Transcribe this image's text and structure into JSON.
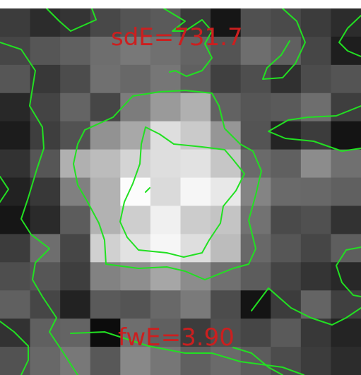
{
  "labels": {
    "sd": "sdE=731.7",
    "fw": "fwE=3.90"
  },
  "colors": {
    "contour": "#22e022",
    "label": "#cc1f1f",
    "frame": "#ffffff"
  },
  "pixel_grid": {
    "cols": 12,
    "rows": 13,
    "levels": [
      [
        60,
        44,
        52,
        72,
        84,
        90,
        58,
        22,
        80,
        74,
        60,
        44
      ],
      [
        70,
        86,
        96,
        110,
        120,
        112,
        100,
        84,
        110,
        96,
        70,
        30
      ],
      [
        86,
        56,
        76,
        112,
        104,
        118,
        96,
        64,
        78,
        48,
        76,
        84
      ],
      [
        40,
        68,
        100,
        70,
        124,
        154,
        176,
        98,
        86,
        90,
        110,
        62
      ],
      [
        28,
        62,
        82,
        146,
        168,
        222,
        202,
        150,
        84,
        36,
        60,
        20
      ],
      [
        50,
        86,
        176,
        188,
        212,
        222,
        226,
        198,
        106,
        96,
        140,
        112
      ],
      [
        34,
        56,
        128,
        178,
        252,
        218,
        246,
        232,
        132,
        106,
        104,
        96
      ],
      [
        22,
        42,
        92,
        178,
        206,
        240,
        204,
        196,
        114,
        74,
        80,
        50
      ],
      [
        60,
        110,
        70,
        208,
        226,
        246,
        222,
        188,
        104,
        86,
        70,
        94
      ],
      [
        78,
        86,
        62,
        130,
        142,
        166,
        140,
        112,
        92,
        68,
        52,
        40
      ],
      [
        96,
        70,
        34,
        90,
        84,
        104,
        122,
        76,
        20,
        60,
        100,
        64
      ],
      [
        50,
        96,
        100,
        12,
        110,
        96,
        60,
        80,
        70,
        90,
        56,
        36
      ],
      [
        82,
        104,
        120,
        88,
        136,
        118,
        96,
        106,
        92,
        76,
        60,
        44
      ]
    ]
  }
}
